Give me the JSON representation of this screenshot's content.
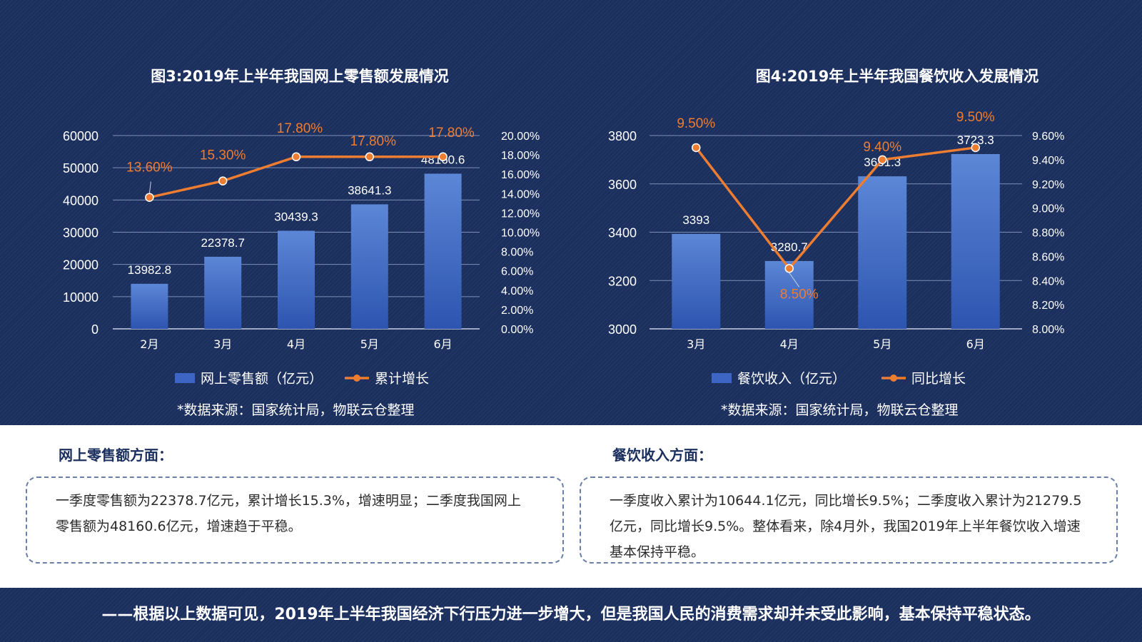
{
  "chart_data": [
    {
      "type": "bar+line",
      "title": "图3:2019年上半年我国网上零售额发展情况",
      "categories": [
        "2月",
        "3月",
        "4月",
        "5月",
        "6月"
      ],
      "series": [
        {
          "name": "网上零售额（亿元）",
          "type": "bar",
          "axis": "left",
          "values": [
            13982.8,
            22378.7,
            30439.3,
            38641.3,
            48160.6
          ],
          "labels": [
            "13982.8",
            "22378.7",
            "30439.3",
            "38641.3",
            "48160.6"
          ]
        },
        {
          "name": "累计增长",
          "type": "line",
          "axis": "right",
          "values": [
            13.6,
            15.3,
            17.8,
            17.8,
            17.8
          ],
          "labels": [
            "13.60%",
            "15.30%",
            "17.80%",
            "17.80%",
            "17.80%"
          ]
        }
      ],
      "y_left": {
        "min": 0,
        "max": 60000,
        "ticks": [
          "0",
          "10000",
          "20000",
          "30000",
          "40000",
          "50000",
          "60000"
        ]
      },
      "y_right": {
        "min": 0,
        "max": 20,
        "ticks": [
          "0.00%",
          "2.00%",
          "4.00%",
          "6.00%",
          "8.00%",
          "10.00%",
          "12.00%",
          "14.00%",
          "16.00%",
          "18.00%",
          "20.00%"
        ]
      },
      "legend": [
        "网上零售额（亿元）",
        "累计增长"
      ],
      "legend_position": "bottom",
      "grid": true,
      "source": "*数据来源：国家统计局，物联云仓整理"
    },
    {
      "type": "bar+line",
      "title": "图4:2019年上半年我国餐饮收入发展情况",
      "categories": [
        "3月",
        "4月",
        "5月",
        "6月"
      ],
      "series": [
        {
          "name": "餐饮收入（亿元）",
          "type": "bar",
          "axis": "left",
          "values": [
            3393,
            3280.7,
            3631.3,
            3723.3
          ],
          "labels": [
            "3393",
            "3280.7",
            "3631.3",
            "3723.3"
          ]
        },
        {
          "name": "同比增长",
          "type": "line",
          "axis": "right",
          "values": [
            9.5,
            8.5,
            9.4,
            9.5
          ],
          "labels": [
            "9.50%",
            "8.50%",
            "9.40%",
            "9.50%"
          ]
        }
      ],
      "y_left": {
        "min": 3000,
        "max": 3800,
        "ticks": [
          "3000",
          "3200",
          "3400",
          "3600",
          "3800"
        ]
      },
      "y_right": {
        "min": 8,
        "max": 9.6,
        "ticks": [
          "8.00%",
          "8.20%",
          "8.40%",
          "8.60%",
          "8.80%",
          "9.00%",
          "9.20%",
          "9.40%",
          "9.60%"
        ]
      },
      "legend": [
        "餐饮收入（亿元）",
        "同比增长"
      ],
      "legend_position": "bottom",
      "grid": true,
      "source": "*数据来源：国家统计局，物联云仓整理"
    }
  ],
  "sections": [
    {
      "heading": "网上零售额方面：",
      "text": "一季度零售额为22378.7亿元，累计增长15.3%，增速明显；二季度我国网上零售额为48160.6亿元，增速趋于平稳。"
    },
    {
      "heading": "餐饮收入方面：",
      "text": "一季度收入累计为10644.1亿元，同比增长9.5%；二季度收入累计为21279.5亿元，同比增长9.5%。整体看来，除4月外，我国2019年上半年餐饮收入增速基本保持平稳。"
    }
  ],
  "conclusion": "——根据以上数据可见，2019年上半年我国经济下行压力进一步增大，但是我国人民的消费需求却并未受此影响，基本保持平稳状态。",
  "colors": {
    "background": "#1b2f5e",
    "bar": "#3d66c4",
    "line": "#ed7d31",
    "text_light": "#ffffff",
    "text_dark": "#1b2f5e"
  }
}
